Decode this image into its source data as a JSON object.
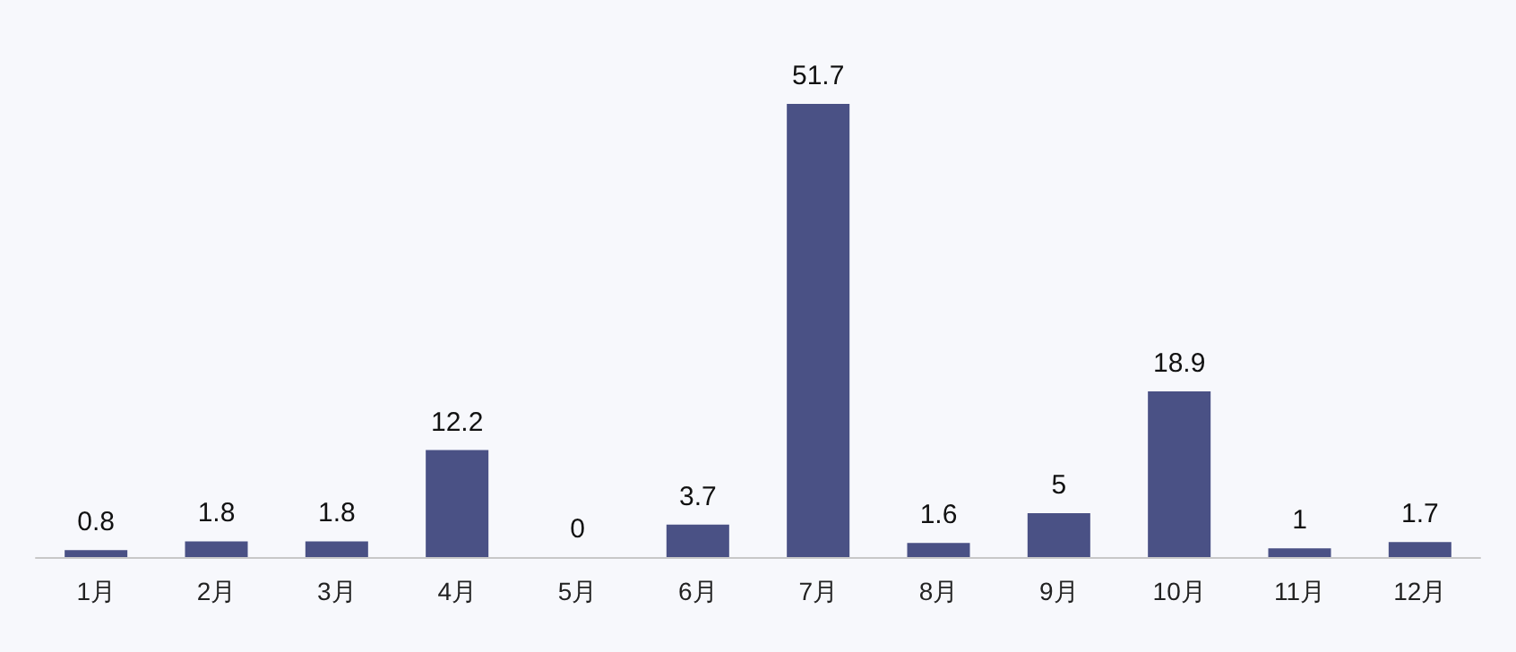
{
  "chart_data": {
    "type": "bar",
    "categories": [
      "1月",
      "2月",
      "3月",
      "4月",
      "5月",
      "6月",
      "7月",
      "8月",
      "9月",
      "10月",
      "11月",
      "12月"
    ],
    "values": [
      0.8,
      1.8,
      1.8,
      12.2,
      0,
      3.7,
      51.7,
      1.6,
      5,
      18.9,
      1,
      1.7
    ],
    "color": "#4a5185",
    "data_labels": true
  }
}
